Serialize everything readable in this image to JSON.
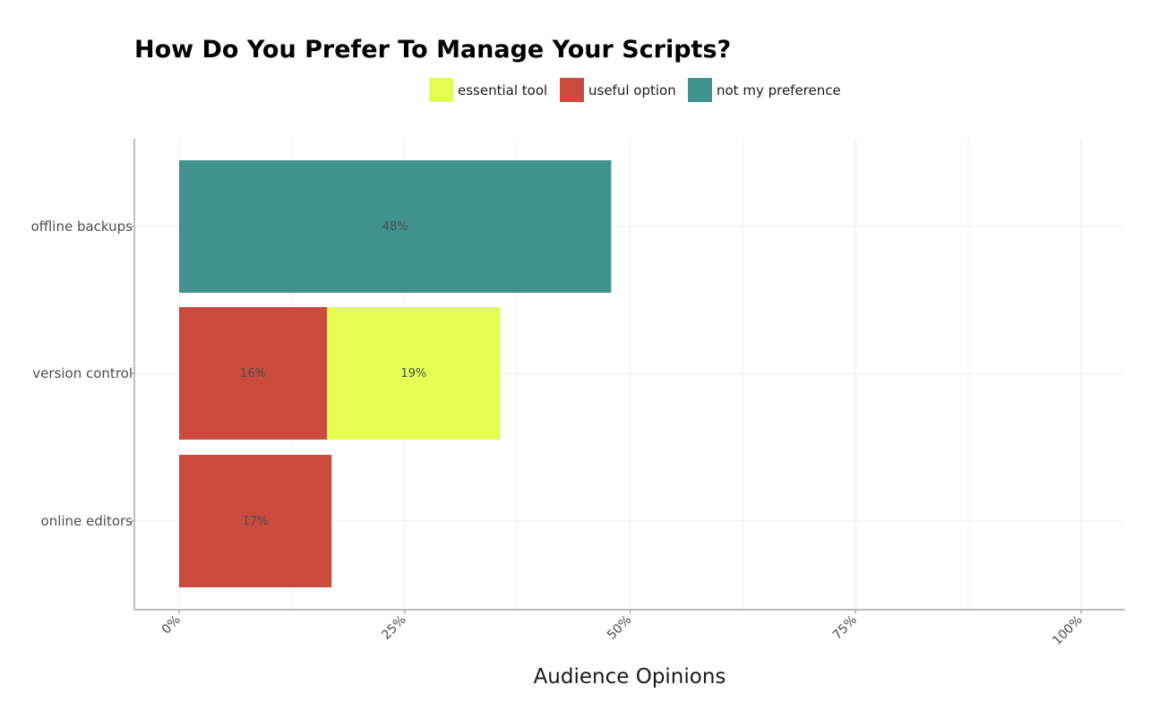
{
  "chart_data": {
    "type": "bar",
    "orientation": "horizontal",
    "stacked": true,
    "title": "How Do You Prefer To Manage Your Scripts?",
    "xlabel": "Audience Opinions",
    "ylabel": "",
    "xlim": [
      0,
      105
    ],
    "x_ticks": [
      0,
      25,
      50,
      75,
      100
    ],
    "x_tick_labels": [
      "0%",
      "25%",
      "50%",
      "75%",
      "100%"
    ],
    "grid": true,
    "legend_position": "top",
    "categories": [
      "offline backups",
      "version control",
      "online editors"
    ],
    "series": [
      {
        "name": "useful option",
        "color": "#cb4a3e",
        "values": [
          null,
          16.4,
          16.9
        ],
        "labels": [
          "",
          "16%",
          "17%"
        ]
      },
      {
        "name": "essential tool",
        "color": "#e4ff52",
        "values": [
          null,
          19.2,
          null
        ],
        "labels": [
          "",
          "19%",
          ""
        ]
      },
      {
        "name": "not my preference",
        "color": "#41928f",
        "values": [
          47.9,
          null,
          null
        ],
        "labels": [
          "48%",
          "",
          ""
        ]
      }
    ],
    "legend_order": [
      "essential tool",
      "useful option",
      "not my preference"
    ]
  }
}
